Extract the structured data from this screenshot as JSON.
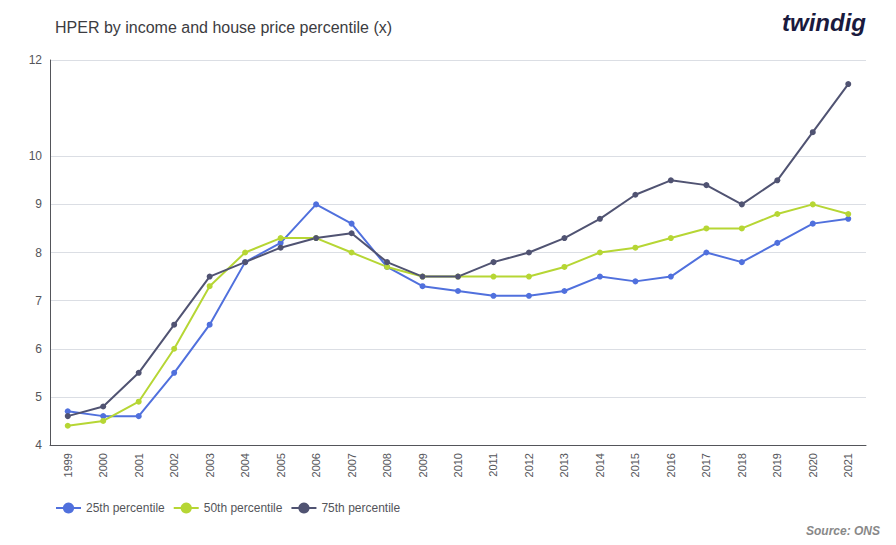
{
  "chart_data": {
    "type": "line",
    "title": "HPER by income and house price percentile (x)",
    "categories": [
      "1999",
      "2000",
      "2001",
      "2002",
      "2003",
      "2004",
      "2005",
      "2006",
      "2007",
      "2008",
      "2009",
      "2010",
      "2011",
      "2012",
      "2013",
      "2014",
      "2015",
      "2016",
      "2017",
      "2018",
      "2019",
      "2020",
      "2021"
    ],
    "series": [
      {
        "name": "25th percentile",
        "values": [
          4.7,
          4.6,
          4.6,
          5.5,
          6.5,
          7.8,
          8.2,
          9.0,
          8.6,
          7.7,
          7.3,
          7.2,
          7.1,
          7.1,
          7.2,
          7.5,
          7.4,
          7.5,
          8.0,
          7.8,
          8.2,
          8.6,
          8.7
        ]
      },
      {
        "name": "50th percentile",
        "values": [
          4.4,
          4.5,
          4.9,
          6.0,
          7.3,
          8.0,
          8.3,
          8.3,
          8.0,
          7.7,
          7.5,
          7.5,
          7.5,
          7.5,
          7.7,
          8.0,
          8.1,
          8.3,
          8.5,
          8.5,
          8.8,
          9.0,
          8.8
        ]
      },
      {
        "name": "75th percentile",
        "values": [
          4.6,
          4.8,
          5.5,
          6.5,
          7.5,
          7.8,
          8.1,
          8.3,
          8.4,
          7.8,
          7.5,
          7.5,
          7.8,
          8.0,
          8.3,
          8.7,
          9.2,
          9.5,
          9.4,
          9.0,
          9.5,
          10.5,
          11.5
        ]
      }
    ],
    "ylim": [
      4,
      12
    ],
    "yticks": [
      4,
      5,
      6,
      7,
      8,
      9,
      10,
      12
    ],
    "grid": true,
    "legend": "bottom",
    "marker": "circle",
    "annotations": [
      {
        "text": "Source: ONS"
      },
      {
        "text": "twindig",
        "color": "#1a1a3e"
      }
    ]
  }
}
